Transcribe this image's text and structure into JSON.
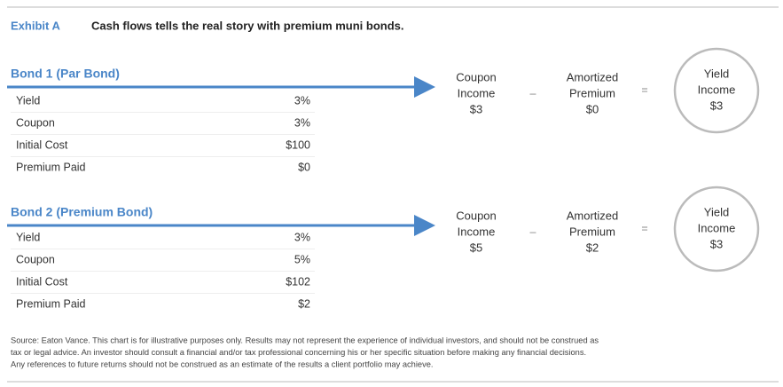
{
  "header": {
    "label": "Exhibit A",
    "title": "Cash flows tells the real story with premium muni bonds."
  },
  "bonds": [
    {
      "title": "Bond 1 (Par Bond)",
      "rows": [
        [
          "Yield",
          "3%"
        ],
        [
          "Coupon",
          "3%"
        ],
        [
          "Initial Cost",
          "$100"
        ],
        [
          "Premium Paid",
          "$0"
        ]
      ],
      "equation": {
        "coupon": [
          "Coupon",
          "Income",
          "$3"
        ],
        "minus": "–",
        "premium": [
          "Amortized",
          "Premium",
          "$0"
        ],
        "equals": "=",
        "yield": [
          "Yield",
          "Income",
          "$3"
        ]
      }
    },
    {
      "title": "Bond 2 (Premium Bond)",
      "rows": [
        [
          "Yield",
          "3%"
        ],
        [
          "Coupon",
          "5%"
        ],
        [
          "Initial Cost",
          "$102"
        ],
        [
          "Premium Paid",
          "$2"
        ]
      ],
      "equation": {
        "coupon": [
          "Coupon",
          "Income",
          "$5"
        ],
        "minus": "–",
        "premium": [
          "Amortized",
          "Premium",
          "$2"
        ],
        "equals": "=",
        "yield": [
          "Yield",
          "Income",
          "$3"
        ]
      }
    }
  ],
  "footnote": [
    "Source: Eaton Vance. This chart is for illustrative purposes only. Results may not represent the experience of individual investors, and should not be construed as",
    "tax or legal advice. An investor should consult a financial and/or tax professional concerning his or her specific situation before making any financial decisions.",
    "Any references to future returns should not be construed as an estimate of the results a client portfolio may achieve."
  ]
}
